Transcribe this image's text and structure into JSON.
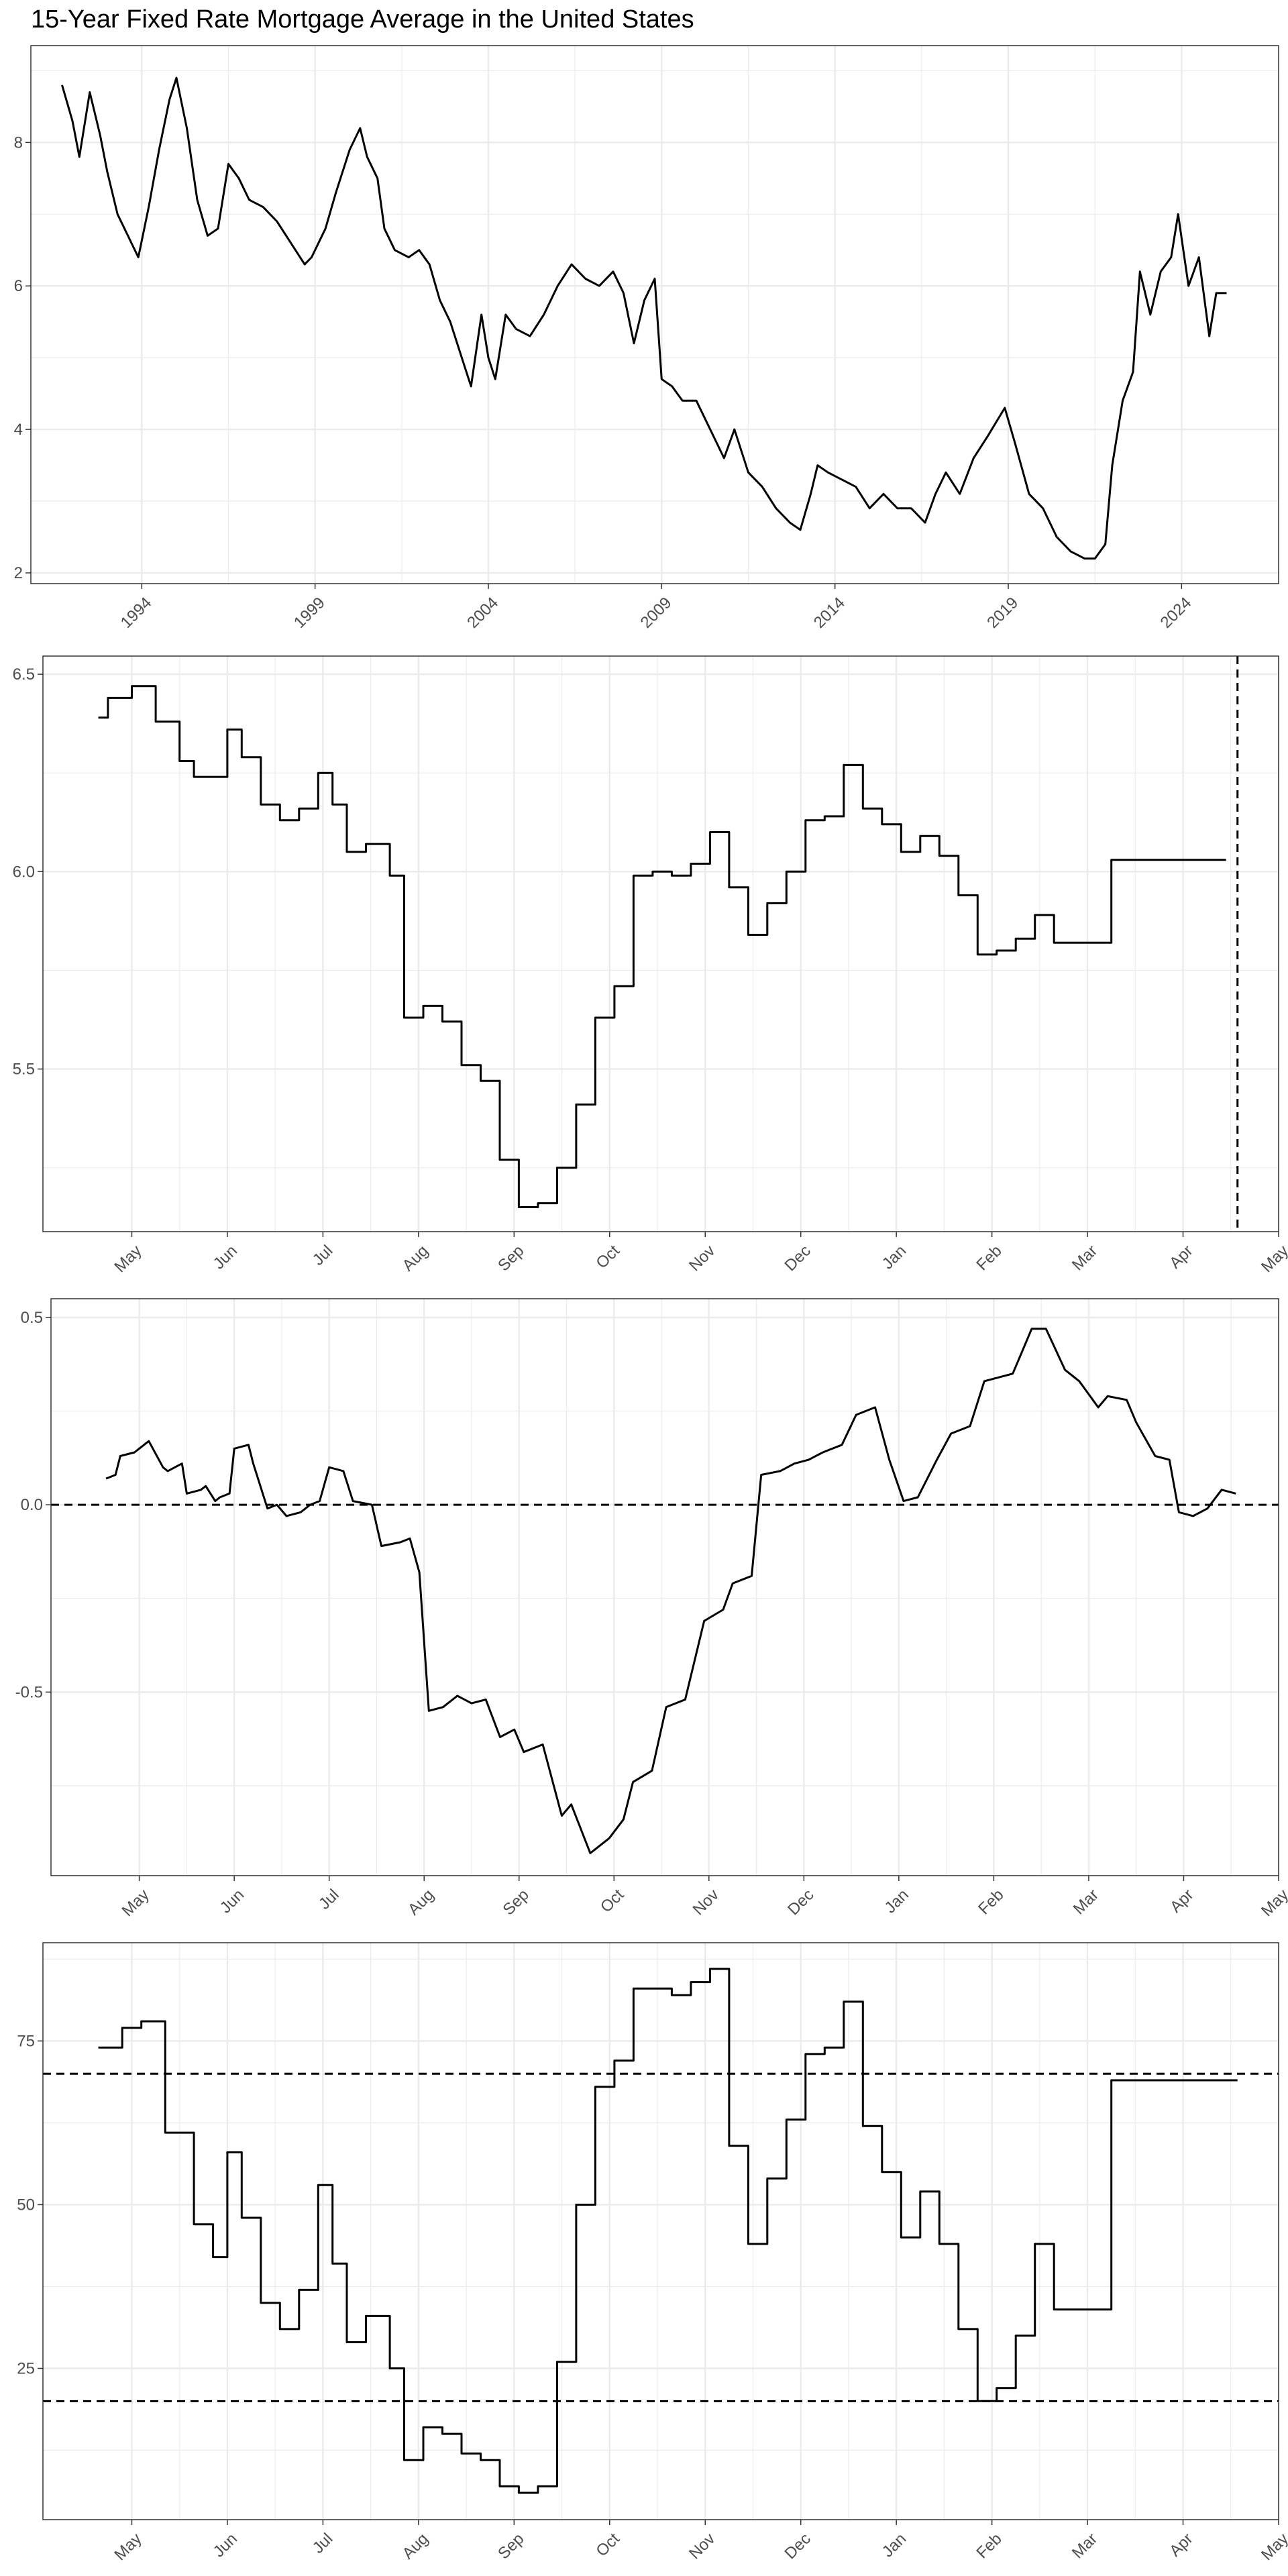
{
  "title": "15-Year Fixed Rate Mortgage Average in the United States",
  "colors": {
    "line": "#000000",
    "grid": "#ebebeb",
    "border": "#333333",
    "tick_text": "#4d4d4d",
    "background": "#ffffff"
  },
  "chart_data": [
    {
      "type": "line",
      "title": "15-Year Fixed Rate Mortgage Average in the United States",
      "xlabel": "",
      "ylabel": "",
      "x_type": "year",
      "xlim": [
        1990.8,
        2026.8
      ],
      "ylim": [
        1.85,
        9.35
      ],
      "x_ticks": [
        1994,
        1999,
        2004,
        2009,
        2014,
        2019,
        2024
      ],
      "y_ticks": [
        2,
        4,
        6,
        8
      ],
      "y_tick_labels": [
        "2",
        "4",
        "6",
        "8"
      ],
      "grid": true,
      "series": [
        {
          "x": [
            1991.7,
            1992.0,
            1992.2,
            1992.5,
            1992.8,
            1993.0,
            1993.3,
            1993.6,
            1993.9,
            1994.2,
            1994.5,
            1994.8,
            1995.0,
            1995.3,
            1995.6,
            1995.9,
            1996.2,
            1996.5,
            1996.8,
            1997.1,
            1997.5,
            1997.9,
            1998.3,
            1998.7,
            1998.9,
            1999.3,
            1999.6,
            2000.0,
            2000.3,
            2000.5,
            2000.8,
            2001.0,
            2001.3,
            2001.7,
            2002.0,
            2002.3,
            2002.6,
            2002.9,
            2003.3,
            2003.5,
            2003.8,
            2004.0,
            2004.2,
            2004.5,
            2004.8,
            2005.2,
            2005.6,
            2006.0,
            2006.4,
            2006.8,
            2007.2,
            2007.6,
            2007.9,
            2008.2,
            2008.5,
            2008.8,
            2009.0,
            2009.3,
            2009.6,
            2010.0,
            2010.4,
            2010.8,
            2011.1,
            2011.5,
            2011.9,
            2012.3,
            2012.7,
            2013.0,
            2013.3,
            2013.5,
            2013.8,
            2014.2,
            2014.6,
            2015.0,
            2015.4,
            2015.8,
            2016.2,
            2016.6,
            2016.9,
            2017.2,
            2017.6,
            2018.0,
            2018.4,
            2018.9,
            2019.2,
            2019.6,
            2020.0,
            2020.4,
            2020.8,
            2021.2,
            2021.5,
            2021.8,
            2022.0,
            2022.3,
            2022.6,
            2022.8,
            2023.1,
            2023.4,
            2023.7,
            2023.9,
            2024.2,
            2024.5,
            2024.8,
            2025.0,
            2025.3
          ],
          "y": [
            8.8,
            8.3,
            7.8,
            8.7,
            8.1,
            7.6,
            7.0,
            6.7,
            6.4,
            7.1,
            7.9,
            8.6,
            8.9,
            8.2,
            7.2,
            6.7,
            6.8,
            7.7,
            7.5,
            7.2,
            7.1,
            6.9,
            6.6,
            6.3,
            6.4,
            6.8,
            7.3,
            7.9,
            8.2,
            7.8,
            7.5,
            6.8,
            6.5,
            6.4,
            6.5,
            6.3,
            5.8,
            5.5,
            4.9,
            4.6,
            5.6,
            5.0,
            4.7,
            5.6,
            5.4,
            5.3,
            5.6,
            6.0,
            6.3,
            6.1,
            6.0,
            6.2,
            5.9,
            5.2,
            5.8,
            6.1,
            4.7,
            4.6,
            4.4,
            4.4,
            4.0,
            3.6,
            4.0,
            3.4,
            3.2,
            2.9,
            2.7,
            2.6,
            3.1,
            3.5,
            3.4,
            3.3,
            3.2,
            2.9,
            3.1,
            2.9,
            2.9,
            2.7,
            3.1,
            3.4,
            3.1,
            3.6,
            3.9,
            4.3,
            3.8,
            3.1,
            2.9,
            2.5,
            2.3,
            2.2,
            2.2,
            2.4,
            3.5,
            4.4,
            4.8,
            6.2,
            5.6,
            6.2,
            6.4,
            7.0,
            6.0,
            6.4,
            5.3,
            5.9,
            5.9
          ]
        }
      ]
    },
    {
      "type": "line",
      "xlabel": "",
      "ylabel": "",
      "x_type": "month",
      "xlim": [
        -0.93,
        12.0
      ],
      "ylim": [
        5.088,
        6.546
      ],
      "x_ticks": [
        0,
        1,
        2,
        3,
        4,
        5,
        6,
        7,
        8,
        9,
        10,
        11,
        12
      ],
      "x_tick_labels": [
        "May",
        "Jun",
        "Jul",
        "Aug",
        "Sep",
        "Oct",
        "Nov",
        "Dec",
        "Jan",
        "Feb",
        "Mar",
        "Apr",
        "May"
      ],
      "y_ticks": [
        5.5,
        6.0,
        6.5
      ],
      "y_tick_labels": [
        "5.5",
        "6.0",
        "6.5"
      ],
      "vline": 11.57,
      "grid": true,
      "series": [
        {
          "step": true,
          "x": [
            -0.35,
            -0.25,
            -0.1,
            0.0,
            0.1,
            0.25,
            0.35,
            0.5,
            0.65,
            0.85,
            1.0,
            1.15,
            1.35,
            1.55,
            1.75,
            1.95,
            2.1,
            2.25,
            2.45,
            2.7,
            2.85,
            3.05,
            3.25,
            3.45,
            3.65,
            3.85,
            4.05,
            4.25,
            4.45,
            4.65,
            4.85,
            5.05,
            5.25,
            5.45,
            5.65,
            5.85,
            6.05,
            6.25,
            6.45,
            6.65,
            6.85,
            7.05,
            7.25,
            7.45,
            7.65,
            7.85,
            8.05,
            8.25,
            8.45,
            8.65,
            8.85,
            9.05,
            9.25,
            9.45,
            9.65,
            9.85,
            10.05,
            10.25,
            10.45,
            10.65,
            10.85,
            11.05,
            11.25,
            11.45
          ],
          "y": [
            6.39,
            6.44,
            6.44,
            6.47,
            6.47,
            6.38,
            6.38,
            6.28,
            6.24,
            6.24,
            6.36,
            6.29,
            6.17,
            6.13,
            6.16,
            6.25,
            6.17,
            6.05,
            6.07,
            5.99,
            5.63,
            5.66,
            5.62,
            5.51,
            5.47,
            5.27,
            5.15,
            5.16,
            5.25,
            5.41,
            5.63,
            5.71,
            5.99,
            6.0,
            5.99,
            6.02,
            6.1,
            5.96,
            5.84,
            5.92,
            6.0,
            6.13,
            6.14,
            6.27,
            6.16,
            6.12,
            6.05,
            6.09,
            6.04,
            5.94,
            5.79,
            5.8,
            5.83,
            5.89,
            5.82,
            5.82,
            5.82,
            6.03,
            6.03,
            6.03,
            6.03,
            6.03,
            6.03,
            6.03
          ]
        }
      ]
    },
    {
      "type": "line",
      "xlabel": "",
      "ylabel": "",
      "x_type": "month",
      "xlim": [
        -0.93,
        12.0
      ],
      "ylim": [
        -0.99,
        0.55
      ],
      "x_ticks": [
        0,
        1,
        2,
        3,
        4,
        5,
        6,
        7,
        8,
        9,
        10,
        11,
        12
      ],
      "x_tick_labels": [
        "May",
        "Jun",
        "Jul",
        "Aug",
        "Sep",
        "Oct",
        "Nov",
        "Dec",
        "Jan",
        "Feb",
        "Mar",
        "Apr",
        "May"
      ],
      "y_ticks": [
        -0.5,
        0.0,
        0.5
      ],
      "y_tick_labels": [
        "-0.5",
        "0.0",
        "0.5"
      ],
      "hline": 0,
      "grid": true,
      "series": [
        {
          "x": [
            -0.35,
            -0.25,
            -0.2,
            -0.05,
            0.1,
            0.25,
            0.3,
            0.45,
            0.5,
            0.65,
            0.7,
            0.8,
            0.85,
            0.95,
            1.0,
            1.15,
            1.2,
            1.35,
            1.45,
            1.55,
            1.7,
            1.8,
            1.9,
            2.0,
            2.15,
            2.25,
            2.45,
            2.55,
            2.75,
            2.85,
            2.95,
            3.05,
            3.2,
            3.35,
            3.5,
            3.65,
            3.8,
            3.95,
            4.05,
            4.25,
            4.45,
            4.55,
            4.75,
            4.95,
            5.1,
            5.2,
            5.4,
            5.55,
            5.75,
            5.95,
            6.15,
            6.25,
            6.45,
            6.55,
            6.75,
            6.9,
            7.05,
            7.2,
            7.4,
            7.55,
            7.75,
            7.9,
            8.05,
            8.2,
            8.4,
            8.55,
            8.75,
            8.9,
            9.05,
            9.2,
            9.4,
            9.55,
            9.75,
            9.9,
            10.1,
            10.2,
            10.4,
            10.5,
            10.7,
            10.85,
            10.95,
            11.1,
            11.25,
            11.4,
            11.55
          ],
          "y": [
            0.07,
            0.08,
            0.13,
            0.14,
            0.17,
            0.1,
            0.09,
            0.11,
            0.03,
            0.04,
            0.05,
            0.01,
            0.02,
            0.03,
            0.15,
            0.16,
            0.11,
            -0.01,
            0.0,
            -0.03,
            -0.02,
            0.0,
            0.01,
            0.1,
            0.09,
            0.01,
            0.0,
            -0.11,
            -0.1,
            -0.09,
            -0.18,
            -0.55,
            -0.54,
            -0.51,
            -0.53,
            -0.52,
            -0.62,
            -0.6,
            -0.66,
            -0.64,
            -0.83,
            -0.8,
            -0.93,
            -0.89,
            -0.84,
            -0.74,
            -0.71,
            -0.54,
            -0.52,
            -0.31,
            -0.28,
            -0.21,
            -0.19,
            0.08,
            0.09,
            0.11,
            0.12,
            0.14,
            0.16,
            0.24,
            0.26,
            0.12,
            0.01,
            0.02,
            0.12,
            0.19,
            0.21,
            0.33,
            0.34,
            0.35,
            0.47,
            0.47,
            0.36,
            0.33,
            0.26,
            0.29,
            0.28,
            0.22,
            0.13,
            0.12,
            -0.02,
            -0.03,
            -0.01,
            0.04,
            0.03
          ]
        }
      ]
    },
    {
      "type": "line",
      "xlabel": "",
      "ylabel": "",
      "x_type": "month",
      "xlim": [
        -0.93,
        12.0
      ],
      "ylim": [
        1.9,
        90.0
      ],
      "x_ticks": [
        0,
        1,
        2,
        3,
        4,
        5,
        6,
        7,
        8,
        9,
        10,
        11,
        12
      ],
      "x_tick_labels": [
        "May",
        "Jun",
        "Jul",
        "Aug",
        "Sep",
        "Oct",
        "Nov",
        "Dec",
        "Jan",
        "Feb",
        "Mar",
        "Apr",
        "May"
      ],
      "y_ticks": [
        25,
        50,
        75
      ],
      "y_tick_labels": [
        "25",
        "50",
        "75"
      ],
      "hlines": [
        20,
        70
      ],
      "grid": true,
      "series": [
        {
          "step": true,
          "x": [
            -0.35,
            -0.25,
            -0.1,
            0.0,
            0.1,
            0.25,
            0.35,
            0.5,
            0.65,
            0.85,
            1.0,
            1.15,
            1.35,
            1.55,
            1.75,
            1.95,
            2.1,
            2.25,
            2.45,
            2.7,
            2.85,
            3.05,
            3.25,
            3.45,
            3.65,
            3.85,
            4.05,
            4.25,
            4.45,
            4.65,
            4.85,
            5.05,
            5.25,
            5.45,
            5.65,
            5.85,
            6.05,
            6.25,
            6.45,
            6.65,
            6.85,
            7.05,
            7.25,
            7.45,
            7.65,
            7.85,
            8.05,
            8.25,
            8.45,
            8.65,
            8.85,
            9.05,
            9.25,
            9.45,
            9.65,
            9.85,
            10.05,
            10.25,
            10.45,
            10.65,
            10.85,
            11.05,
            11.25,
            11.45,
            11.57
          ],
          "y": [
            74,
            74,
            77,
            77,
            78,
            78,
            61,
            61,
            47,
            42,
            58,
            48,
            35,
            31,
            37,
            53,
            41,
            29,
            33,
            25,
            11,
            16,
            15,
            12,
            11,
            7,
            6,
            7,
            26,
            50,
            68,
            72,
            83,
            83,
            82,
            84,
            86,
            59,
            44,
            54,
            63,
            73,
            74,
            81,
            62,
            55,
            45,
            52,
            44,
            31,
            20,
            22,
            30,
            44,
            34,
            34,
            34,
            69,
            69,
            69,
            69,
            69,
            69,
            69,
            69
          ]
        }
      ]
    }
  ]
}
